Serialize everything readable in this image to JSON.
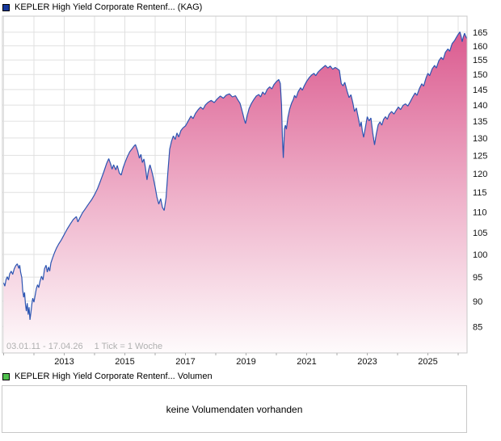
{
  "price_panel": {
    "legend": {
      "swatch_color": "#16389b",
      "label": "KEPLER High Yield Corporate Rentenf... (KAG)"
    },
    "footnote": {
      "date_range": "03.01.11 - 17.04.26",
      "tick_note": "1 Tick = 1 Woche"
    }
  },
  "volume_panel": {
    "legend": {
      "swatch_color": "#50c14e",
      "label": "KEPLER High Yield Corporate Rentenf... Volumen"
    },
    "message": "keine Volumendaten vorhanden"
  },
  "chart_data": {
    "type": "area",
    "title": "KEPLER High Yield Corporate Rentenf... (KAG)",
    "legend_position": "top-left",
    "grid": true,
    "line_color": "#2c55b2",
    "fill_gradient_top": "#d9538a",
    "fill_gradient_mid": "#efb3cb",
    "fill_gradient_bottom": "#fefbfc",
    "grid_color": "#e0e0e0",
    "border_color": "#c8c8c8",
    "y_axis": {
      "scale": "log",
      "side": "right",
      "tick_labels": [
        85,
        90,
        95,
        100,
        105,
        110,
        115,
        120,
        125,
        130,
        135,
        140,
        145,
        150,
        155,
        160,
        165
      ],
      "approx_visible_range": [
        80,
        170
      ]
    },
    "x_axis": {
      "start_date": "03.01.11",
      "end_date": "17.04.26",
      "tick_unit": "1 Woche",
      "year_labels": [
        "2013",
        "2015",
        "2017",
        "2019",
        "2021",
        "2023",
        "2025"
      ],
      "year_label_values": [
        2013,
        2015,
        2017,
        2019,
        2021,
        2023,
        2025
      ],
      "gridline_years": [
        2011,
        2012,
        2013,
        2014,
        2015,
        2016,
        2017,
        2018,
        2019,
        2020,
        2021,
        2022,
        2023,
        2024,
        2025,
        2026
      ],
      "approx_range_years": [
        2011.0,
        2026.3
      ]
    },
    "series": [
      {
        "name": "KEPLER High Yield Corporate Rentenf... (KAG)",
        "points": [
          [
            2011.0,
            93.8
          ],
          [
            2011.04,
            93.1
          ],
          [
            2011.08,
            94.5
          ],
          [
            2011.12,
            95.1
          ],
          [
            2011.16,
            94.4
          ],
          [
            2011.2,
            95.7
          ],
          [
            2011.25,
            96.3
          ],
          [
            2011.3,
            95.6
          ],
          [
            2011.35,
            96.8
          ],
          [
            2011.4,
            97.5
          ],
          [
            2011.45,
            97.9
          ],
          [
            2011.5,
            96.9
          ],
          [
            2011.53,
            97.6
          ],
          [
            2011.56,
            96.1
          ],
          [
            2011.6,
            94.9
          ],
          [
            2011.63,
            92.2
          ],
          [
            2011.66,
            90.8
          ],
          [
            2011.69,
            91.8
          ],
          [
            2011.72,
            89.4
          ],
          [
            2011.75,
            88.0
          ],
          [
            2011.78,
            89.6
          ],
          [
            2011.81,
            87.3
          ],
          [
            2011.84,
            88.8
          ],
          [
            2011.87,
            86.3
          ],
          [
            2011.9,
            87.8
          ],
          [
            2011.93,
            89.4
          ],
          [
            2011.96,
            90.6
          ],
          [
            2012.0,
            89.8
          ],
          [
            2012.04,
            91.2
          ],
          [
            2012.08,
            92.6
          ],
          [
            2012.12,
            93.4
          ],
          [
            2012.16,
            92.8
          ],
          [
            2012.2,
            94.1
          ],
          [
            2012.25,
            95.2
          ],
          [
            2012.3,
            94.4
          ],
          [
            2012.35,
            96.8
          ],
          [
            2012.4,
            97.6
          ],
          [
            2012.44,
            96.1
          ],
          [
            2012.48,
            97.2
          ],
          [
            2012.52,
            96.3
          ],
          [
            2012.56,
            98.1
          ],
          [
            2012.62,
            99.3
          ],
          [
            2012.68,
            100.4
          ],
          [
            2012.75,
            101.5
          ],
          [
            2012.82,
            102.4
          ],
          [
            2012.9,
            103.3
          ],
          [
            2013.0,
            104.6
          ],
          [
            2013.1,
            105.9
          ],
          [
            2013.2,
            107.1
          ],
          [
            2013.3,
            108.2
          ],
          [
            2013.4,
            108.9
          ],
          [
            2013.45,
            107.6
          ],
          [
            2013.5,
            108.4
          ],
          [
            2013.6,
            109.8
          ],
          [
            2013.7,
            110.9
          ],
          [
            2013.8,
            112.0
          ],
          [
            2013.9,
            113.1
          ],
          [
            2014.0,
            114.4
          ],
          [
            2014.1,
            116.0
          ],
          [
            2014.2,
            118.1
          ],
          [
            2014.3,
            120.3
          ],
          [
            2014.4,
            122.8
          ],
          [
            2014.47,
            124.1
          ],
          [
            2014.53,
            122.6
          ],
          [
            2014.58,
            121.2
          ],
          [
            2014.63,
            122.4
          ],
          [
            2014.7,
            121.0
          ],
          [
            2014.75,
            122.2
          ],
          [
            2014.82,
            120.1
          ],
          [
            2014.88,
            119.6
          ],
          [
            2014.94,
            121.5
          ],
          [
            2015.0,
            122.9
          ],
          [
            2015.08,
            124.6
          ],
          [
            2015.16,
            126.0
          ],
          [
            2015.24,
            126.9
          ],
          [
            2015.3,
            127.6
          ],
          [
            2015.35,
            128.1
          ],
          [
            2015.42,
            126.3
          ],
          [
            2015.48,
            124.2
          ],
          [
            2015.53,
            125.3
          ],
          [
            2015.58,
            123.0
          ],
          [
            2015.63,
            124.0
          ],
          [
            2015.68,
            121.5
          ],
          [
            2015.73,
            118.3
          ],
          [
            2015.78,
            120.8
          ],
          [
            2015.83,
            122.4
          ],
          [
            2015.88,
            120.9
          ],
          [
            2015.93,
            119.2
          ],
          [
            2016.0,
            116.4
          ],
          [
            2016.06,
            113.8
          ],
          [
            2016.12,
            112.0
          ],
          [
            2016.18,
            113.4
          ],
          [
            2016.24,
            111.2
          ],
          [
            2016.3,
            110.4
          ],
          [
            2016.36,
            113.6
          ],
          [
            2016.42,
            120.5
          ],
          [
            2016.48,
            126.8
          ],
          [
            2016.54,
            129.0
          ],
          [
            2016.6,
            130.6
          ],
          [
            2016.66,
            129.6
          ],
          [
            2016.72,
            131.5
          ],
          [
            2016.78,
            130.3
          ],
          [
            2016.85,
            132.2
          ],
          [
            2016.92,
            133.0
          ],
          [
            2017.0,
            133.6
          ],
          [
            2017.1,
            135.2
          ],
          [
            2017.18,
            136.6
          ],
          [
            2017.25,
            135.8
          ],
          [
            2017.33,
            137.4
          ],
          [
            2017.42,
            138.6
          ],
          [
            2017.5,
            139.4
          ],
          [
            2017.58,
            138.7
          ],
          [
            2017.66,
            140.1
          ],
          [
            2017.75,
            140.9
          ],
          [
            2017.85,
            141.5
          ],
          [
            2017.95,
            140.8
          ],
          [
            2018.05,
            142.0
          ],
          [
            2018.15,
            142.9
          ],
          [
            2018.25,
            142.2
          ],
          [
            2018.35,
            143.2
          ],
          [
            2018.45,
            143.6
          ],
          [
            2018.55,
            142.6
          ],
          [
            2018.65,
            143.0
          ],
          [
            2018.72,
            141.8
          ],
          [
            2018.8,
            140.6
          ],
          [
            2018.85,
            138.9
          ],
          [
            2018.9,
            137.0
          ],
          [
            2018.94,
            135.5
          ],
          [
            2018.98,
            134.3
          ],
          [
            2019.04,
            136.8
          ],
          [
            2019.1,
            138.9
          ],
          [
            2019.18,
            140.6
          ],
          [
            2019.26,
            141.8
          ],
          [
            2019.34,
            142.9
          ],
          [
            2019.42,
            143.4
          ],
          [
            2019.48,
            142.6
          ],
          [
            2019.55,
            144.2
          ],
          [
            2019.62,
            143.4
          ],
          [
            2019.7,
            145.1
          ],
          [
            2019.78,
            145.9
          ],
          [
            2019.85,
            145.2
          ],
          [
            2019.92,
            146.6
          ],
          [
            2020.0,
            147.6
          ],
          [
            2020.08,
            148.3
          ],
          [
            2020.13,
            147.0
          ],
          [
            2020.17,
            140.0
          ],
          [
            2020.2,
            130.0
          ],
          [
            2020.23,
            124.3
          ],
          [
            2020.27,
            132.8
          ],
          [
            2020.3,
            133.8
          ],
          [
            2020.33,
            132.6
          ],
          [
            2020.38,
            136.2
          ],
          [
            2020.44,
            138.8
          ],
          [
            2020.5,
            140.6
          ],
          [
            2020.56,
            141.8
          ],
          [
            2020.6,
            143.1
          ],
          [
            2020.65,
            142.3
          ],
          [
            2020.72,
            144.3
          ],
          [
            2020.8,
            145.6
          ],
          [
            2020.86,
            144.8
          ],
          [
            2020.92,
            146.2
          ],
          [
            2021.0,
            147.7
          ],
          [
            2021.08,
            148.9
          ],
          [
            2021.16,
            149.8
          ],
          [
            2021.24,
            150.4
          ],
          [
            2021.3,
            149.6
          ],
          [
            2021.38,
            150.9
          ],
          [
            2021.46,
            151.7
          ],
          [
            2021.54,
            152.4
          ],
          [
            2021.62,
            153.1
          ],
          [
            2021.7,
            152.2
          ],
          [
            2021.78,
            152.9
          ],
          [
            2021.86,
            151.8
          ],
          [
            2021.94,
            152.4
          ],
          [
            2022.02,
            151.9
          ],
          [
            2022.08,
            151.4
          ],
          [
            2022.14,
            147.0
          ],
          [
            2022.2,
            146.2
          ],
          [
            2022.26,
            147.4
          ],
          [
            2022.33,
            144.6
          ],
          [
            2022.4,
            142.4
          ],
          [
            2022.46,
            143.3
          ],
          [
            2022.52,
            140.9
          ],
          [
            2022.58,
            138.0
          ],
          [
            2022.64,
            139.1
          ],
          [
            2022.7,
            136.2
          ],
          [
            2022.76,
            133.4
          ],
          [
            2022.8,
            134.8
          ],
          [
            2022.84,
            131.9
          ],
          [
            2022.88,
            130.2
          ],
          [
            2022.93,
            132.8
          ],
          [
            2023.0,
            136.4
          ],
          [
            2023.06,
            135.1
          ],
          [
            2023.12,
            136.0
          ],
          [
            2023.18,
            131.5
          ],
          [
            2023.24,
            128.0
          ],
          [
            2023.3,
            131.2
          ],
          [
            2023.36,
            133.9
          ],
          [
            2023.42,
            134.8
          ],
          [
            2023.48,
            133.8
          ],
          [
            2023.54,
            135.6
          ],
          [
            2023.6,
            136.4
          ],
          [
            2023.66,
            135.6
          ],
          [
            2023.72,
            137.1
          ],
          [
            2023.8,
            138.0
          ],
          [
            2023.88,
            137.2
          ],
          [
            2023.95,
            138.3
          ],
          [
            2024.03,
            139.4
          ],
          [
            2024.1,
            138.6
          ],
          [
            2024.18,
            139.9
          ],
          [
            2024.26,
            140.4
          ],
          [
            2024.34,
            139.7
          ],
          [
            2024.42,
            141.1
          ],
          [
            2024.5,
            142.6
          ],
          [
            2024.58,
            143.9
          ],
          [
            2024.64,
            143.1
          ],
          [
            2024.72,
            145.3
          ],
          [
            2024.8,
            146.9
          ],
          [
            2024.86,
            146.1
          ],
          [
            2024.94,
            148.9
          ],
          [
            2025.0,
            150.4
          ],
          [
            2025.06,
            149.6
          ],
          [
            2025.14,
            151.9
          ],
          [
            2025.22,
            153.1
          ],
          [
            2025.28,
            152.2
          ],
          [
            2025.36,
            154.7
          ],
          [
            2025.44,
            155.9
          ],
          [
            2025.5,
            155.1
          ],
          [
            2025.58,
            157.7
          ],
          [
            2025.66,
            158.9
          ],
          [
            2025.72,
            158.1
          ],
          [
            2025.8,
            160.8
          ],
          [
            2025.88,
            161.9
          ],
          [
            2025.94,
            163.1
          ],
          [
            2026.0,
            164.2
          ],
          [
            2026.06,
            165.1
          ],
          [
            2026.1,
            163.4
          ],
          [
            2026.13,
            161.5
          ],
          [
            2026.17,
            163.3
          ],
          [
            2026.21,
            164.6
          ],
          [
            2026.25,
            163.4
          ],
          [
            2026.29,
            162.6
          ]
        ]
      }
    ]
  }
}
